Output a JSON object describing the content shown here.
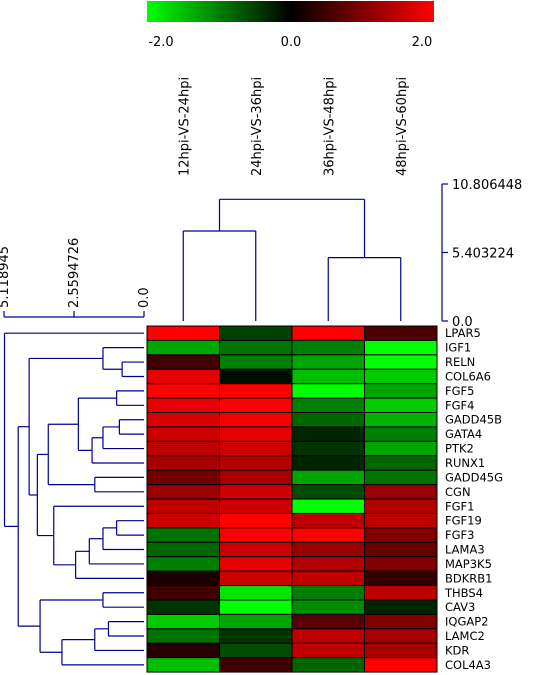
{
  "chart_data": {
    "type": "heatmap",
    "color_scale": {
      "min": -2.0,
      "mid": 0.0,
      "max": 2.0,
      "min_color": "#00ff00",
      "mid_color": "#000000",
      "max_color": "#ff0000",
      "tick_labels": [
        "-2.0",
        "0.0",
        "2.0"
      ]
    },
    "columns": [
      "12hpi-VS-24hpi",
      "24hpi-VS-36hpi",
      "36hpi-VS-48hpi",
      "48hpi-VS-60hpi"
    ],
    "rows": [
      "LPAR5",
      "IGF1",
      "RELN",
      "COL6A6",
      "FGF5",
      "FGF4",
      "GADD45B",
      "GATA4",
      "PTK2",
      "RUNX1",
      "GADD45G",
      "CGN",
      "FGF1",
      "FGF19",
      "FGF3",
      "LAMA3",
      "MAP3K5",
      "BDKRB1",
      "THBS4",
      "CAV3",
      "IQGAP2",
      "LAMC2",
      "KDR",
      "COL4A3"
    ],
    "values": [
      [
        2.0,
        -0.5,
        2.0,
        0.6
      ],
      [
        -1.3,
        -0.9,
        -1.0,
        -2.0
      ],
      [
        0.5,
        -1.0,
        -1.3,
        -2.0
      ],
      [
        1.8,
        -0.1,
        -1.5,
        -1.6
      ],
      [
        2.0,
        2.0,
        -2.0,
        -1.3
      ],
      [
        1.8,
        2.0,
        -1.0,
        -1.6
      ],
      [
        1.7,
        1.9,
        -0.8,
        -1.4
      ],
      [
        1.6,
        1.8,
        -0.3,
        -1.0
      ],
      [
        1.5,
        1.6,
        -0.4,
        -1.3
      ],
      [
        1.3,
        1.4,
        -0.3,
        -0.8
      ],
      [
        0.9,
        1.3,
        -1.3,
        -0.9
      ],
      [
        1.2,
        1.6,
        -0.6,
        1.2
      ],
      [
        1.5,
        1.6,
        -2.0,
        1.4
      ],
      [
        1.6,
        2.0,
        1.5,
        1.5
      ],
      [
        -0.9,
        2.0,
        2.0,
        1.0
      ],
      [
        -0.8,
        1.6,
        1.2,
        0.8
      ],
      [
        -1.0,
        1.8,
        1.4,
        1.0
      ],
      [
        0.2,
        1.6,
        1.5,
        0.4
      ],
      [
        0.5,
        -1.8,
        -1.0,
        1.5
      ],
      [
        -0.4,
        -2.0,
        -1.1,
        -0.3
      ],
      [
        -1.6,
        -1.3,
        0.7,
        1.0
      ],
      [
        -0.9,
        -0.4,
        1.5,
        1.3
      ],
      [
        0.3,
        -0.6,
        1.5,
        1.3
      ],
      [
        -1.5,
        0.5,
        -0.8,
        2.0
      ]
    ],
    "column_dendrogram": {
      "scale_labels": [
        "10.806448",
        "5.403224",
        "0.0"
      ],
      "scale_max": 10.806448,
      "merges": [
        {
          "left": 0,
          "right": 1,
          "height": 7.1
        },
        {
          "left": 2,
          "right": 3,
          "height": 5.0
        },
        {
          "left": "c0",
          "right": "c1",
          "height": 9.6
        }
      ]
    },
    "row_dendrogram": {
      "scale_labels": [
        "5.118945",
        "2.5594726",
        "0.0"
      ],
      "scale_max": 5.118945,
      "merges": [
        {
          "left": 4,
          "right": 5,
          "height": 1.0
        },
        {
          "left": 6,
          "right": 7,
          "height": 0.9
        },
        {
          "left": "c1",
          "right": 8,
          "height": 1.5
        },
        {
          "left": "c2",
          "right": 9,
          "height": 1.9
        },
        {
          "left": "c0",
          "right": "c3",
          "height": 2.4
        },
        {
          "left": 10,
          "right": 11,
          "height": 1.8
        },
        {
          "left": "c4",
          "right": "c5",
          "height": 3.5
        },
        {
          "left": 13,
          "right": 14,
          "height": 1.0
        },
        {
          "left": "c7",
          "right": 15,
          "height": 1.5
        },
        {
          "left": "c8",
          "right": 16,
          "height": 2.0
        },
        {
          "left": "c9",
          "right": 17,
          "height": 2.5
        },
        {
          "left": 12,
          "right": "c10",
          "height": 3.3
        },
        {
          "left": "c6",
          "right": "c11",
          "height": 3.9
        },
        {
          "left": 2,
          "right": 3,
          "height": 0.8
        },
        {
          "left": 1,
          "right": "c13",
          "height": 1.5
        },
        {
          "left": "c14",
          "right": "c12",
          "height": 4.2
        },
        {
          "left": 18,
          "right": 19,
          "height": 1.5
        },
        {
          "left": 20,
          "right": 21,
          "height": 1.3
        },
        {
          "left": "c17",
          "right": 22,
          "height": 1.8
        },
        {
          "left": "c18",
          "right": 23,
          "height": 3.0
        },
        {
          "left": "c16",
          "right": "c19",
          "height": 3.8
        },
        {
          "left": "c15",
          "right": "c20",
          "height": 4.6
        },
        {
          "left": 0,
          "right": "c21",
          "height": 5.1
        }
      ]
    },
    "line_color": "#00008b"
  }
}
